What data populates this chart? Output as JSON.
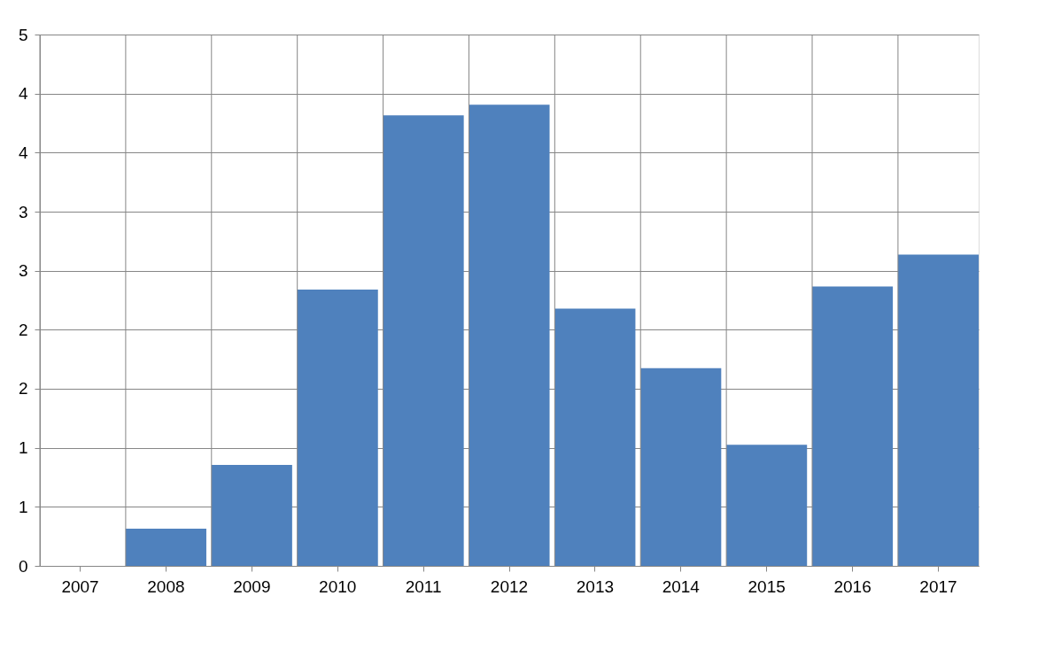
{
  "chart_data": {
    "type": "bar",
    "categories": [
      "2007",
      "2008",
      "2009",
      "2010",
      "2011",
      "2012",
      "2013",
      "2014",
      "2015",
      "2016",
      "2017"
    ],
    "values": [
      null,
      0.35,
      0.95,
      2.6,
      4.24,
      4.34,
      2.42,
      1.86,
      1.14,
      2.63,
      2.93
    ],
    "color": "#4f81bd",
    "ylim": [
      0,
      5
    ],
    "yticks": [
      {
        "value": 0,
        "label": "0"
      },
      {
        "value": 0.556,
        "label": "1"
      },
      {
        "value": 1.111,
        "label": "1"
      },
      {
        "value": 1.667,
        "label": "2"
      },
      {
        "value": 2.222,
        "label": "2"
      },
      {
        "value": 2.778,
        "label": "3"
      },
      {
        "value": 3.333,
        "label": "3"
      },
      {
        "value": 3.889,
        "label": "4"
      },
      {
        "value": 4.444,
        "label": "4"
      },
      {
        "value": 5,
        "label": "5"
      }
    ],
    "grid": true
  }
}
